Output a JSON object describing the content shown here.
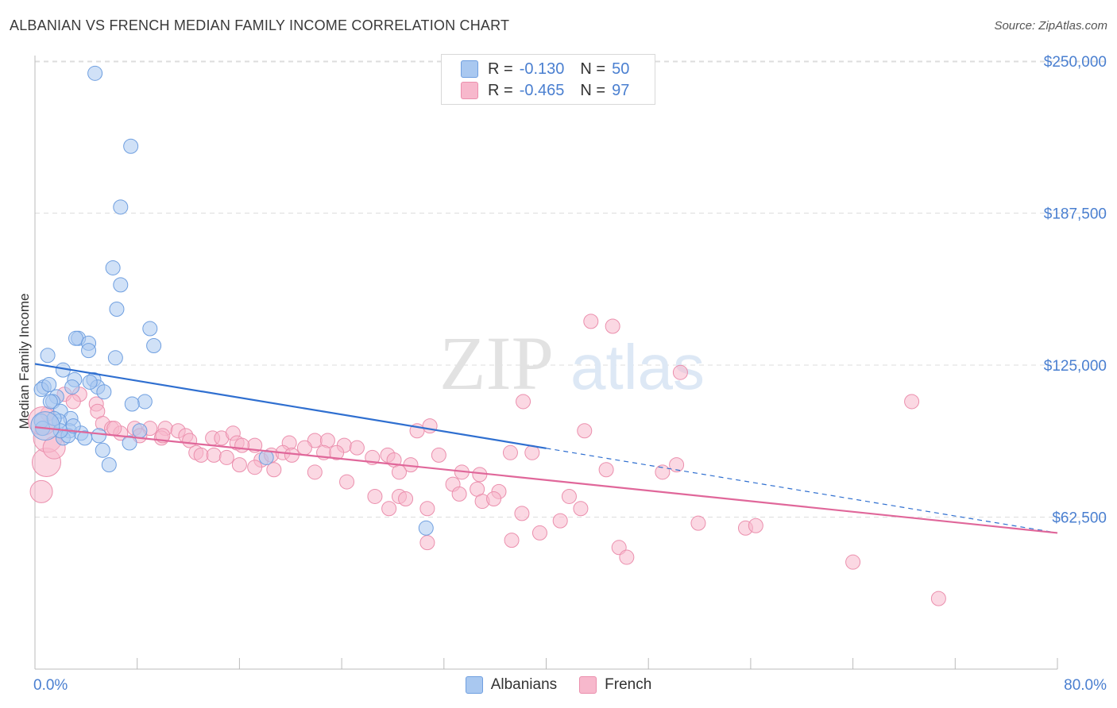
{
  "title": "ALBANIAN VS FRENCH MEDIAN FAMILY INCOME CORRELATION CHART",
  "source": "Source: ZipAtlas.com",
  "watermark": {
    "zip": "ZIP",
    "atlas": "atlas"
  },
  "colors": {
    "albanians_fill": "#a9c8f0",
    "albanians_stroke": "#6f9fe0",
    "albanians_line": "#2f6fd0",
    "french_fill": "#f7b8cc",
    "french_stroke": "#eb8fad",
    "french_line": "#e0679a",
    "tick_label": "#4a7fd0",
    "grid": "#dddddd"
  },
  "legend_top": [
    {
      "r_label": "R =",
      "r_value": "-0.130",
      "n_label": "N =",
      "n_value": "50"
    },
    {
      "r_label": "R =",
      "r_value": "-0.465",
      "n_label": "N =",
      "n_value": "97"
    }
  ],
  "chart_data": {
    "type": "scatter",
    "title": "ALBANIAN VS FRENCH MEDIAN FAMILY INCOME CORRELATION CHART",
    "xlabel": "",
    "ylabel": "Median Family Income",
    "xlim": [
      0,
      80
    ],
    "ylim": [
      0,
      270000
    ],
    "x_tick_labels": [
      "0.0%",
      "80.0%"
    ],
    "y_ticks": [
      62500,
      125000,
      187500,
      250000
    ],
    "y_tick_labels": [
      "$62,500",
      "$125,000",
      "$187,500",
      "$250,000"
    ],
    "grid": "horizontal dashed",
    "legend_placement": "top-center and bottom",
    "series": [
      {
        "name": "Albanians",
        "r": -0.13,
        "n": 50,
        "trend": {
          "x0": 0,
          "y0": 125500,
          "x1": 40,
          "y1": 90800,
          "dashed_to_x": 80,
          "dashed_to_y": 56000
        },
        "points": [
          [
            4.7,
            245000
          ],
          [
            7.5,
            215000
          ],
          [
            6.7,
            190000
          ],
          [
            6.1,
            165000
          ],
          [
            6.7,
            158000
          ],
          [
            6.4,
            148000
          ],
          [
            9.0,
            140000
          ],
          [
            3.4,
            136000
          ],
          [
            3.2,
            136000
          ],
          [
            4.2,
            134000
          ],
          [
            4.2,
            131000
          ],
          [
            9.3,
            133000
          ],
          [
            6.3,
            128000
          ],
          [
            1.0,
            129000
          ],
          [
            2.2,
            123000
          ],
          [
            3.1,
            119000
          ],
          [
            4.6,
            119000
          ],
          [
            2.9,
            116000
          ],
          [
            4.9,
            116000
          ],
          [
            0.7,
            116000
          ],
          [
            0.5,
            115000
          ],
          [
            5.4,
            114000
          ],
          [
            1.7,
            112000
          ],
          [
            1.4,
            110000
          ],
          [
            8.6,
            110000
          ],
          [
            1.2,
            110000
          ],
          [
            7.6,
            109000
          ],
          [
            2.0,
            106000
          ],
          [
            2.8,
            103000
          ],
          [
            1.9,
            102000
          ],
          [
            0.5,
            102000
          ],
          [
            0.6,
            99000
          ],
          [
            8.2,
            98000
          ],
          [
            2.7,
            98000
          ],
          [
            3.6,
            97000
          ],
          [
            5.0,
            96000
          ],
          [
            2.2,
            95000
          ],
          [
            2.6,
            96000
          ],
          [
            3.9,
            95000
          ],
          [
            7.4,
            93000
          ],
          [
            5.3,
            90000
          ],
          [
            5.8,
            84000
          ],
          [
            18.1,
            87000
          ],
          [
            30.6,
            58000
          ],
          [
            2.0,
            98000
          ],
          [
            1.5,
            103000
          ],
          [
            3.0,
            100000
          ],
          [
            4.3,
            118000
          ],
          [
            0.8,
            100000
          ],
          [
            1.1,
            117000
          ]
        ],
        "sizes": [
          0,
          0,
          0,
          0,
          0,
          0,
          0,
          0,
          0,
          0,
          0,
          0,
          0,
          0,
          0,
          0,
          0,
          0,
          0,
          0,
          0,
          0,
          0,
          0,
          0,
          0,
          0,
          0,
          0,
          0,
          0,
          0,
          0,
          0,
          0,
          0,
          0,
          0,
          0,
          0,
          0,
          0,
          0,
          0,
          0,
          0,
          0,
          0,
          2,
          0
        ]
      },
      {
        "name": "French",
        "r": -0.465,
        "n": 97,
        "trend": {
          "x0": 0,
          "y0": 99500,
          "x1": 80,
          "y1": 56000
        },
        "points": [
          [
            43.5,
            143000
          ],
          [
            45.2,
            141000
          ],
          [
            50.5,
            122000
          ],
          [
            68.6,
            110000
          ],
          [
            38.2,
            110000
          ],
          [
            30.9,
            100000
          ],
          [
            29.9,
            98000
          ],
          [
            43.0,
            98000
          ],
          [
            2.3,
            113000
          ],
          [
            3.5,
            113000
          ],
          [
            3.0,
            110000
          ],
          [
            4.8,
            109000
          ],
          [
            4.9,
            106000
          ],
          [
            1.0,
            105000
          ],
          [
            5.3,
            101000
          ],
          [
            6.0,
            99000
          ],
          [
            7.8,
            99000
          ],
          [
            9.0,
            99000
          ],
          [
            10.2,
            99000
          ],
          [
            11.2,
            98000
          ],
          [
            6.7,
            97000
          ],
          [
            8.2,
            96000
          ],
          [
            11.8,
            96000
          ],
          [
            13.9,
            95000
          ],
          [
            14.6,
            95000
          ],
          [
            15.5,
            97000
          ],
          [
            9.9,
            95000
          ],
          [
            12.1,
            94000
          ],
          [
            15.8,
            93000
          ],
          [
            17.2,
            92000
          ],
          [
            19.9,
            93000
          ],
          [
            21.9,
            94000
          ],
          [
            22.9,
            94000
          ],
          [
            24.2,
            92000
          ],
          [
            25.2,
            91000
          ],
          [
            21.1,
            91000
          ],
          [
            16.2,
            92000
          ],
          [
            12.6,
            89000
          ],
          [
            13.0,
            88000
          ],
          [
            14.0,
            88000
          ],
          [
            15.0,
            87000
          ],
          [
            17.7,
            86000
          ],
          [
            18.5,
            88000
          ],
          [
            19.4,
            89000
          ],
          [
            20.1,
            88000
          ],
          [
            22.6,
            89000
          ],
          [
            23.6,
            89000
          ],
          [
            26.4,
            87000
          ],
          [
            27.6,
            88000
          ],
          [
            28.1,
            86000
          ],
          [
            29.4,
            84000
          ],
          [
            31.6,
            88000
          ],
          [
            33.4,
            81000
          ],
          [
            34.8,
            80000
          ],
          [
            37.2,
            89000
          ],
          [
            38.9,
            89000
          ],
          [
            44.7,
            82000
          ],
          [
            49.1,
            81000
          ],
          [
            50.2,
            84000
          ],
          [
            16.0,
            84000
          ],
          [
            17.2,
            83000
          ],
          [
            18.7,
            82000
          ],
          [
            21.9,
            81000
          ],
          [
            28.5,
            81000
          ],
          [
            24.4,
            77000
          ],
          [
            32.7,
            76000
          ],
          [
            33.2,
            72000
          ],
          [
            34.6,
            74000
          ],
          [
            36.3,
            73000
          ],
          [
            26.6,
            71000
          ],
          [
            27.7,
            66000
          ],
          [
            28.5,
            71000
          ],
          [
            29.0,
            70000
          ],
          [
            30.7,
            66000
          ],
          [
            35.0,
            69000
          ],
          [
            35.9,
            70000
          ],
          [
            38.1,
            64000
          ],
          [
            41.8,
            71000
          ],
          [
            42.7,
            66000
          ],
          [
            41.1,
            61000
          ],
          [
            39.5,
            56000
          ],
          [
            37.3,
            53000
          ],
          [
            30.7,
            52000
          ],
          [
            45.7,
            50000
          ],
          [
            46.3,
            46000
          ],
          [
            51.9,
            60000
          ],
          [
            55.6,
            58000
          ],
          [
            56.4,
            59000
          ],
          [
            64.0,
            44000
          ],
          [
            70.7,
            29000
          ],
          [
            0.5,
            73000
          ],
          [
            0.9,
            85000
          ],
          [
            1.0,
            95000
          ],
          [
            1.5,
            91000
          ],
          [
            0.6,
            102000
          ],
          [
            6.2,
            99000
          ],
          [
            10.0,
            96000
          ]
        ],
        "sizes": [
          0,
          0,
          0,
          0,
          0,
          0,
          0,
          0,
          0,
          0,
          0,
          0,
          0,
          0,
          0,
          0,
          0,
          0,
          0,
          0,
          0,
          0,
          0,
          0,
          0,
          0,
          0,
          0,
          0,
          0,
          0,
          0,
          0,
          0,
          0,
          0,
          0,
          0,
          0,
          0,
          0,
          0,
          0,
          0,
          0,
          0,
          0,
          0,
          0,
          0,
          0,
          0,
          0,
          0,
          0,
          0,
          0,
          0,
          0,
          0,
          0,
          0,
          0,
          0,
          0,
          0,
          0,
          0,
          0,
          0,
          0,
          0,
          0,
          0,
          0,
          0,
          0,
          0,
          0,
          0,
          0,
          0,
          0,
          0,
          0,
          0,
          0,
          0,
          0,
          0,
          1,
          2,
          2,
          1,
          2,
          0,
          0
        ]
      }
    ]
  },
  "legend_bottom": [
    {
      "label": "Albanians"
    },
    {
      "label": "French"
    }
  ]
}
